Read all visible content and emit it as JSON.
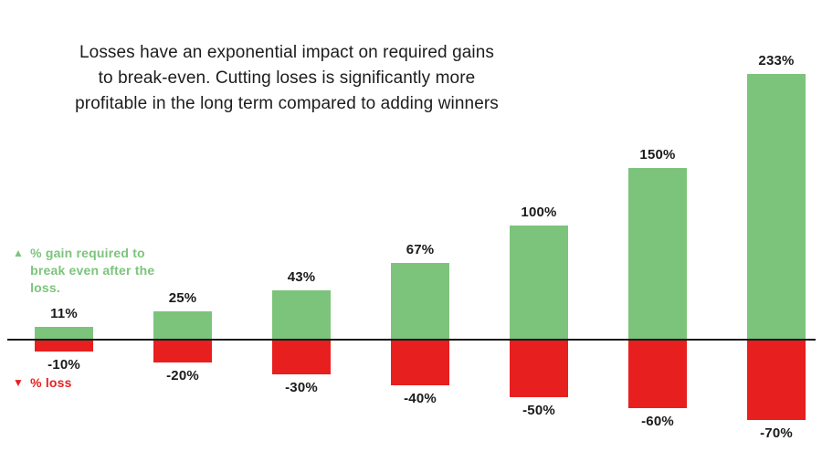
{
  "title": {
    "line1": "Losses have an exponential impact on required gains",
    "line2": "to break-even. Cutting loses is significantly more",
    "line3": "profitable in the long term compared to adding winners"
  },
  "legend": {
    "gain": {
      "icon": "▲",
      "label": "% gain required to break even after the loss."
    },
    "loss": {
      "icon": "▼",
      "label": "% loss"
    }
  },
  "colors": {
    "gain": "#7cc47c",
    "loss": "#e81f1f",
    "axis": "#1a1a1a",
    "text": "#1a1a1a"
  },
  "chart_data": {
    "type": "bar",
    "categories": [
      "-10%",
      "-20%",
      "-30%",
      "-40%",
      "-50%",
      "-60%",
      "-70%"
    ],
    "series": [
      {
        "name": "% gain required to break even after the loss.",
        "values": [
          11,
          25,
          43,
          67,
          100,
          150,
          233
        ],
        "labels": [
          "11%",
          "25%",
          "43%",
          "67%",
          "100%",
          "150%",
          "233%"
        ]
      },
      {
        "name": "% loss",
        "values": [
          -10,
          -20,
          -30,
          -40,
          -50,
          -60,
          -70
        ],
        "labels": [
          "-10%",
          "-20%",
          "-30%",
          "-40%",
          "-50%",
          "-60%",
          "-70%"
        ]
      }
    ],
    "baseline": 0,
    "ylim": [
      -70,
      233
    ],
    "grid": false,
    "legend_position": "left"
  }
}
